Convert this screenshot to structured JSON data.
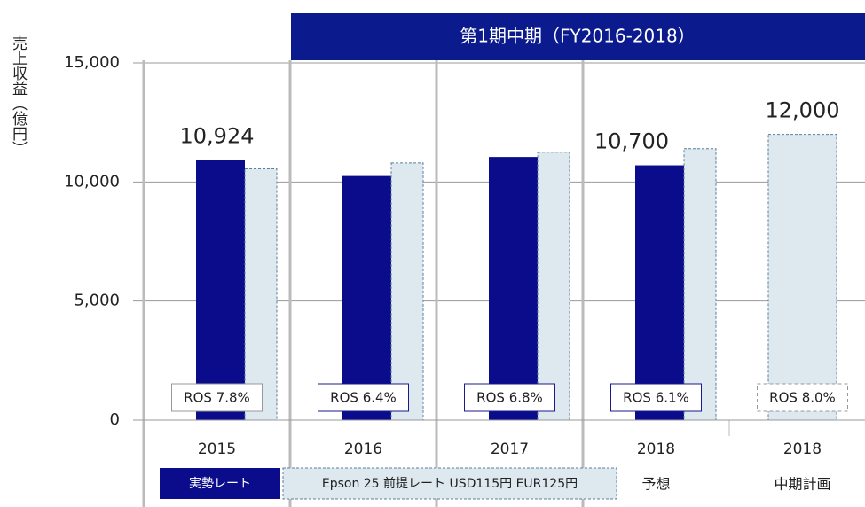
{
  "chart_data": {
    "type": "bar",
    "title": "第1期中期（FY2016-2018）",
    "y_label": "売上収益（億円）",
    "categories": [
      "2015",
      "2016",
      "2017",
      "2018",
      "2018"
    ],
    "category_sublabels": [
      null,
      null,
      null,
      "予想",
      "中期計画"
    ],
    "series": [
      {
        "name": "実勢レート",
        "color": "#0b0c8c",
        "values": [
          10924,
          10250,
          11050,
          10700,
          null
        ],
        "value_labels": [
          "10,924",
          null,
          null,
          "10,700",
          null
        ]
      },
      {
        "name": "Epson 25 前提レート USD115円 EUR125円",
        "color": "#dde8ef",
        "values": [
          10550,
          10800,
          11250,
          11400,
          12000
        ],
        "value_labels": [
          null,
          null,
          null,
          null,
          "12,000"
        ]
      }
    ],
    "annotations": [
      "ROS 7.8%",
      "ROS 6.4%",
      "ROS 6.8%",
      "ROS 6.1%",
      "ROS 8.0%"
    ],
    "ylim": [
      0,
      15000
    ],
    "yticks": [
      0,
      {
        "value": 5000,
        "label": "5,000"
      },
      {
        "value": 10000,
        "label": "10,000"
      },
      {
        "value": 15000,
        "label": "15,000"
      }
    ],
    "grid": true
  }
}
